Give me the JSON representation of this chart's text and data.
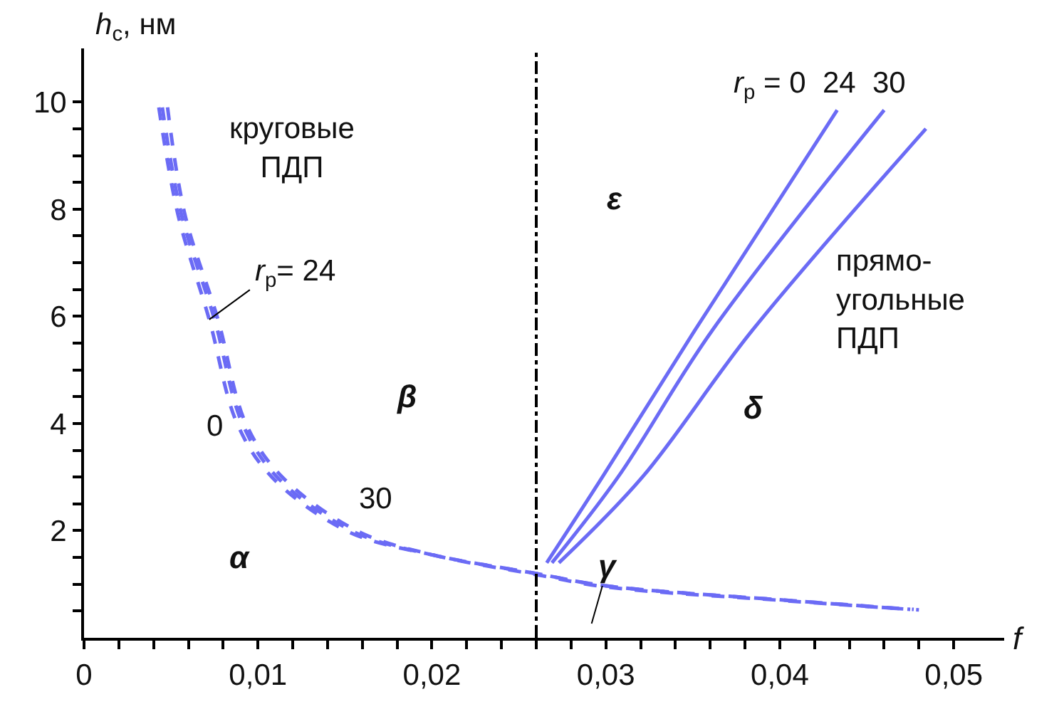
{
  "chart_data": {
    "type": "line",
    "xlabel": "f",
    "ylabel": "h$_{c}$, нм",
    "xlim": [
      0,
      0.0529
    ],
    "ylim": [
      0,
      11
    ],
    "xticks": [
      0,
      {
        "value": 0.002,
        "label": null
      },
      {
        "value": 0.004,
        "label": null
      },
      {
        "value": 0.006,
        "label": null
      },
      {
        "value": 0.008,
        "label": null
      },
      {
        "value": 0.01,
        "label": "0,01"
      },
      {
        "value": 0.012,
        "label": null
      },
      {
        "value": 0.014,
        "label": null
      },
      {
        "value": 0.016,
        "label": null
      },
      {
        "value": 0.018,
        "label": null
      },
      {
        "value": 0.02,
        "label": "0,02"
      },
      {
        "value": 0.022,
        "label": null
      },
      {
        "value": 0.024,
        "label": null
      },
      {
        "value": 0.026,
        "label": null
      },
      {
        "value": 0.028,
        "label": null
      },
      {
        "value": 0.03,
        "label": "0,03"
      },
      {
        "value": 0.032,
        "label": null
      },
      {
        "value": 0.034,
        "label": null
      },
      {
        "value": 0.036,
        "label": null
      },
      {
        "value": 0.038,
        "label": null
      },
      {
        "value": 0.04,
        "label": "0,04"
      },
      {
        "value": 0.042,
        "label": null
      },
      {
        "value": 0.044,
        "label": null
      },
      {
        "value": 0.046,
        "label": null
      },
      {
        "value": 0.048,
        "label": null
      },
      {
        "value": 0.05,
        "label": "0,05"
      }
    ],
    "yticks": [
      {
        "value": 0.5,
        "label": null
      },
      {
        "value": 1,
        "label": null
      },
      {
        "value": 1.5,
        "label": null
      },
      2,
      {
        "value": 2.5,
        "label": null
      },
      {
        "value": 3,
        "label": null
      },
      {
        "value": 3.5,
        "label": null
      },
      4,
      {
        "value": 4.5,
        "label": null
      },
      {
        "value": 5,
        "label": null
      },
      {
        "value": 5.5,
        "label": null
      },
      6,
      {
        "value": 6.5,
        "label": null
      },
      {
        "value": 7,
        "label": null
      },
      {
        "value": 7.5,
        "label": null
      },
      8,
      {
        "value": 8.5,
        "label": null
      },
      {
        "value": 9,
        "label": null
      },
      {
        "value": 9.5,
        "label": null
      },
      10
    ],
    "marker": "none",
    "series": [
      {
        "color": "#6b6bf5",
        "line_style": "dashed",
        "x": [
          0.0043,
          0.0054,
          0.0072,
          0.0088,
          0.0108,
          0.0152,
          0.02,
          0.026,
          0.03,
          0.04,
          0.0475
        ],
        "values": [
          9.9,
          7.9,
          5.94,
          4.0,
          3.0,
          1.98,
          1.55,
          1.2,
          0.97,
          0.71,
          0.53
        ]
      },
      {
        "color": "#6b6bf5",
        "line_style": "dashed",
        "x": [
          0.0045,
          0.0056,
          0.0075,
          0.0091,
          0.0111,
          0.0155,
          0.02,
          0.026,
          0.03,
          0.04,
          0.0477
        ],
        "values": [
          9.9,
          7.9,
          5.94,
          4.0,
          3.0,
          1.98,
          1.55,
          1.2,
          0.97,
          0.71,
          0.53
        ]
      },
      {
        "color": "#6b6bf5",
        "line_style": "dashed",
        "x": [
          0.0048,
          0.0058,
          0.0077,
          0.0093,
          0.0114,
          0.0158,
          0.0203,
          0.026,
          0.03,
          0.04,
          0.048
        ],
        "values": [
          9.9,
          7.9,
          5.94,
          4.0,
          3.0,
          1.98,
          1.53,
          1.18,
          0.95,
          0.7,
          0.52
        ]
      },
      {
        "color": "#6b6bf5",
        "line_style": "solid",
        "x": [
          0.0266,
          0.0298,
          0.0351,
          0.0433
        ],
        "values": [
          1.4,
          3.0,
          5.73,
          9.85
        ]
      },
      {
        "color": "#6b6bf5",
        "line_style": "solid",
        "x": [
          0.0269,
          0.0307,
          0.0361,
          0.046
        ],
        "values": [
          1.4,
          3.0,
          5.73,
          9.85
        ]
      },
      {
        "color": "#6b6bf5",
        "line_style": "solid",
        "x": [
          0.0273,
          0.0321,
          0.0384,
          0.0484
        ],
        "values": [
          1.4,
          3.0,
          5.73,
          9.5
        ]
      }
    ],
    "ref_lines": [
      {
        "axis": "x",
        "value": 0.026,
        "color": "#000000",
        "line_style": "dashdot"
      }
    ],
    "annotations": [
      "круговые\nПДП",
      {
        "text": "r$_{p}$= 24",
        "x": 0.0072,
        "y": 5.94
      },
      "0",
      "30",
      "α",
      "β",
      {
        "text": "γ",
        "x": 0.0298,
        "y": 0.97
      },
      "δ",
      "ε",
      "r$_{p}$ = 0  24  30",
      "прямо-\nугольные\nПДП"
    ]
  }
}
